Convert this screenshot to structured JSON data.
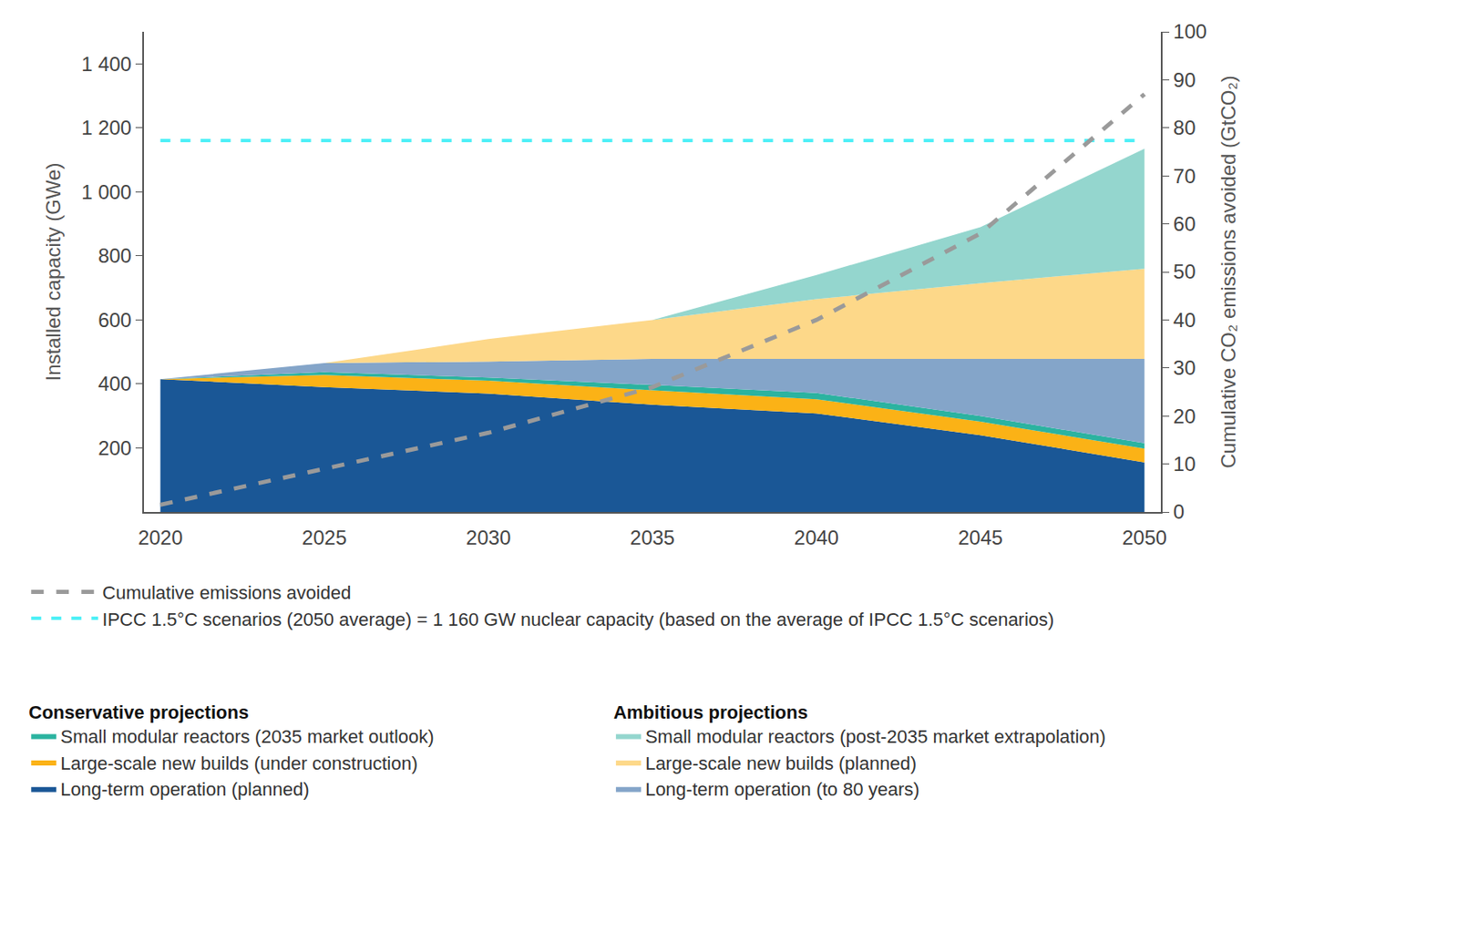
{
  "chart_data": {
    "type": "area",
    "stacked": true,
    "grid": false,
    "x": [
      2020,
      2025,
      2030,
      2035,
      2040,
      2045,
      2050
    ],
    "xlim": [
      2019.5,
      2050.5
    ],
    "xticks": [
      2020,
      2025,
      2030,
      2035,
      2040,
      2045,
      2050
    ],
    "y_label": "Installed capacity (GWe)",
    "ylim": [
      0,
      1500
    ],
    "yticks": [
      200,
      400,
      600,
      800,
      {
        "value": 1000,
        "label": "1 000"
      },
      {
        "value": 1200,
        "label": "1 200"
      },
      {
        "value": 1400,
        "label": "1 400"
      }
    ],
    "y2_label": "Cumulative CO₂ emissions avoided (GtCO₂)",
    "y2lim": [
      0,
      100
    ],
    "y2ticks": [
      0,
      10,
      20,
      30,
      40,
      50,
      60,
      70,
      80,
      90,
      100
    ],
    "series": [
      {
        "name": "Long-term operation (planned)",
        "group": "Conservative projections",
        "color": "#1a5796",
        "values": [
          415,
          390,
          370,
          335,
          308,
          240,
          155
        ]
      },
      {
        "name": "Large-scale new builds (under construction)",
        "group": "Conservative projections",
        "color": "#fbb216",
        "values": [
          0,
          38,
          40,
          45,
          44,
          42,
          43
        ]
      },
      {
        "name": "Small modular reactors (2035 market outlook)",
        "group": "Conservative projections",
        "color": "#2bb3a0",
        "values": [
          0,
          9,
          10,
          17,
          20,
          18,
          17
        ]
      },
      {
        "name": "Long-term operation (to 80 years)",
        "group": "Ambitious projections",
        "color": "#84a5c9",
        "values": [
          0,
          28,
          50,
          81,
          106,
          178,
          263
        ]
      },
      {
        "name": "Large-scale new builds (planned)",
        "group": "Ambitious projections",
        "color": "#fdd889",
        "values": [
          0,
          0,
          70,
          122,
          187,
          237,
          282
        ]
      },
      {
        "name": "Small modular reactors (post-2035 market extrapolation)",
        "group": "Ambitious projections",
        "color": "#94d6ce",
        "values": [
          0,
          0,
          0,
          0,
          75,
          175,
          375
        ]
      },
      {
        "name": "Cumulative emissions avoided",
        "type": "line",
        "axis": "y2",
        "line_style": "dash",
        "color": "#9a9a9a",
        "values": [
          1.5,
          9,
          16.5,
          26,
          40,
          58,
          87
        ]
      }
    ],
    "reference_lines": [
      {
        "name": "IPCC 1.5°C scenarios (2050 average) = 1 160 GW nuclear capacity (based on the average of IPCC 1.5°C scenarios)",
        "value": 1160,
        "color": "#4ff0f7",
        "line_style": "dash"
      }
    ]
  }
}
